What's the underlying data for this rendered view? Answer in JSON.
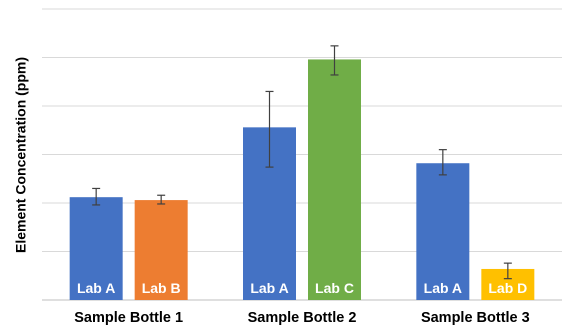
{
  "chart_data": {
    "type": "bar",
    "title": "",
    "xlabel": "",
    "ylabel": "Element Concentration (ppm)",
    "ylim": [
      0,
      30
    ],
    "grid": true,
    "legend": "none",
    "groups": [
      {
        "category": "Sample Bottle 1",
        "bars": [
          {
            "label": "Lab A",
            "value": 10.6,
            "error_low": 9.8,
            "error_high": 11.5,
            "color": "#4472C4"
          },
          {
            "label": "Lab B",
            "value": 10.3,
            "error_low": 9.9,
            "error_high": 10.8,
            "color": "#ED7D31"
          }
        ]
      },
      {
        "category": "Sample Bottle 2",
        "bars": [
          {
            "label": "Lab A",
            "value": 17.8,
            "error_low": 13.7,
            "error_high": 21.5,
            "color": "#4472C4"
          },
          {
            "label": "Lab C",
            "value": 24.8,
            "error_low": 23.2,
            "error_high": 26.2,
            "color": "#70AD47"
          }
        ]
      },
      {
        "category": "Sample Bottle 3",
        "bars": [
          {
            "label": "Lab A",
            "value": 14.1,
            "error_low": 12.9,
            "error_high": 15.5,
            "color": "#4472C4"
          },
          {
            "label": "Lab D",
            "value": 3.2,
            "error_low": 2.2,
            "error_high": 3.8,
            "color": "#FFC000"
          }
        ]
      }
    ]
  }
}
